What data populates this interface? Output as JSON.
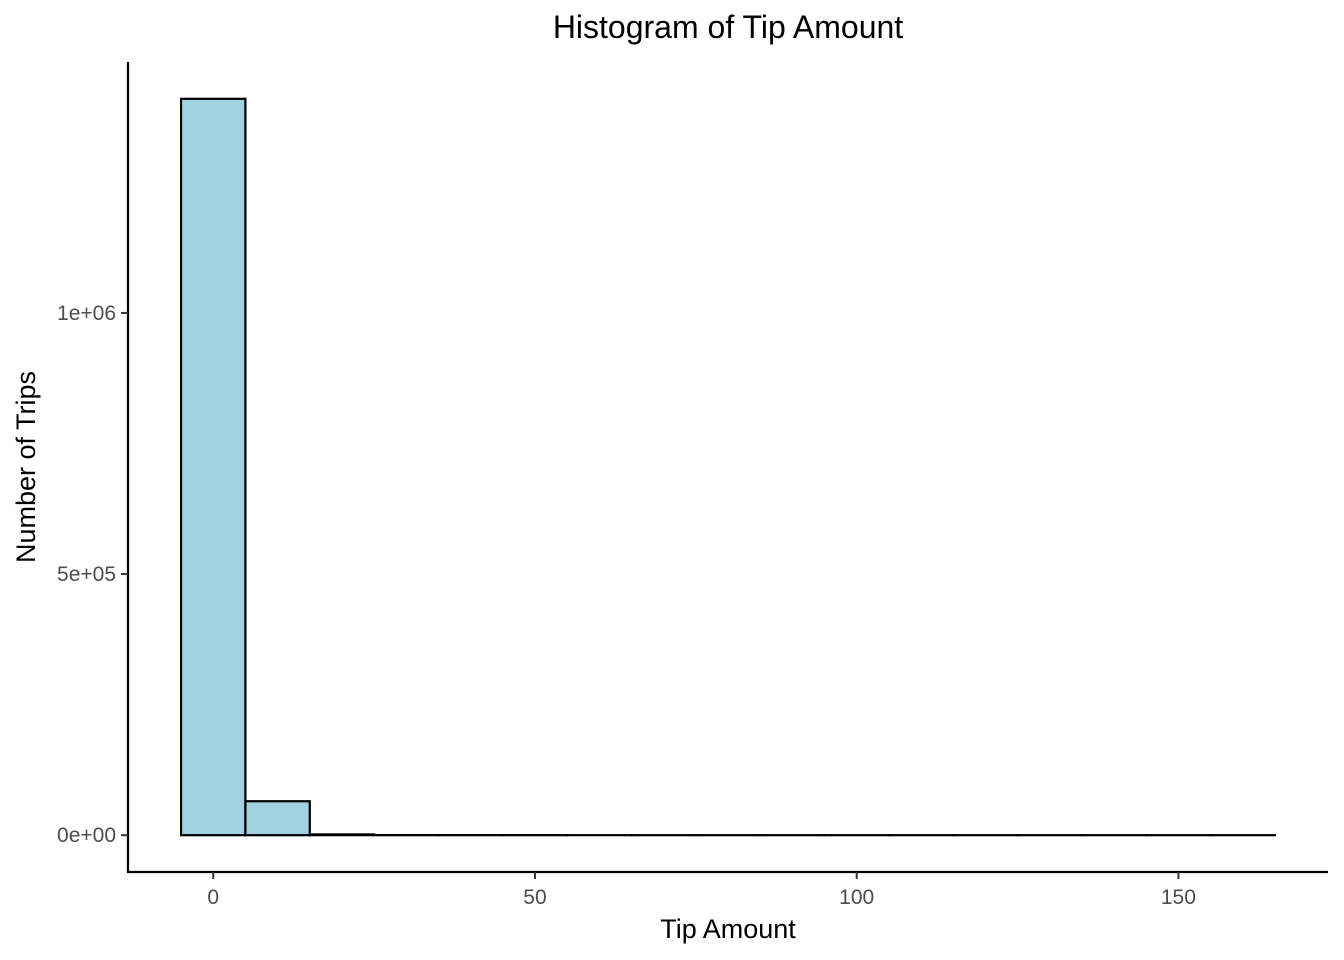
{
  "chart_data": {
    "type": "bar",
    "title": "Histogram of Tip Amount",
    "xlabel": "Tip Amount",
    "ylabel": "Number of Trips",
    "bin_width": 10,
    "bins": [
      {
        "x0": -5,
        "x1": 5,
        "count": 1410000
      },
      {
        "x0": 5,
        "x1": 15,
        "count": 65000
      },
      {
        "x0": 15,
        "x1": 25,
        "count": 1500
      },
      {
        "x0": 25,
        "x1": 35,
        "count": 250
      },
      {
        "x0": 35,
        "x1": 45,
        "count": 80
      },
      {
        "x0": 45,
        "x1": 55,
        "count": 40
      },
      {
        "x0": 55,
        "x1": 65,
        "count": 20
      },
      {
        "x0": 65,
        "x1": 75,
        "count": 10
      },
      {
        "x0": 75,
        "x1": 85,
        "count": 6
      },
      {
        "x0": 85,
        "x1": 95,
        "count": 4
      },
      {
        "x0": 95,
        "x1": 105,
        "count": 3
      },
      {
        "x0": 105,
        "x1": 115,
        "count": 2
      },
      {
        "x0": 115,
        "x1": 125,
        "count": 1
      },
      {
        "x0": 125,
        "x1": 135,
        "count": 1
      },
      {
        "x0": 135,
        "x1": 145,
        "count": 1
      },
      {
        "x0": 145,
        "x1": 155,
        "count": 0
      },
      {
        "x0": 155,
        "x1": 165,
        "count": 1
      }
    ],
    "xlim": [
      -13.25,
      173.25
    ],
    "ylim": [
      -70500,
      1480500
    ],
    "x_ticks": [
      {
        "value": 0,
        "label": "0"
      },
      {
        "value": 50,
        "label": "50"
      },
      {
        "value": 100,
        "label": "100"
      },
      {
        "value": 150,
        "label": "150"
      }
    ],
    "y_ticks": [
      {
        "value": 0,
        "label": "0e+00"
      },
      {
        "value": 500000,
        "label": "5e+05"
      },
      {
        "value": 1000000,
        "label": "1e+06"
      }
    ],
    "grid": false,
    "legend": "none",
    "colors": {
      "bar_fill": "#a1d2e3",
      "bar_outline": "#000000"
    }
  }
}
